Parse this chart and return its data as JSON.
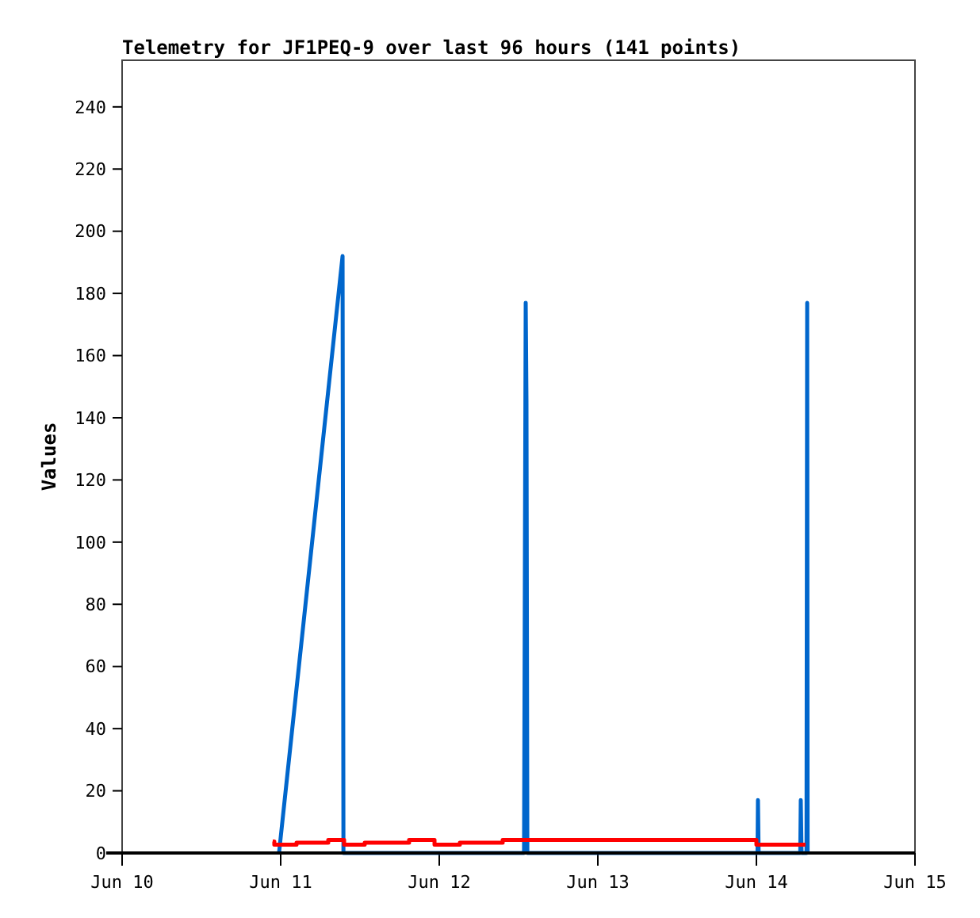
{
  "chart_data": {
    "type": "line",
    "title": "Telemetry for JF1PEQ-9 over last 96 hours (141 points)",
    "ylabel": "Values",
    "xlim": [
      "--06-10",
      "--06-15"
    ],
    "xticks": [
      {
        "value": "--06-10",
        "label": "Jun 10"
      },
      {
        "value": "--06-11",
        "label": "Jun 11"
      },
      {
        "value": "--06-12",
        "label": "Jun 12"
      },
      {
        "value": "--06-13",
        "label": "Jun 13"
      },
      {
        "value": "--06-14",
        "label": "Jun 14"
      },
      {
        "value": "--06-15",
        "label": "Jun 15"
      }
    ],
    "ylim": [
      0,
      255
    ],
    "yticks": [
      0,
      20,
      40,
      60,
      80,
      100,
      120,
      140,
      160,
      180,
      200,
      220,
      240
    ],
    "grid": false,
    "series": [
      {
        "color": "#0066cc",
        "x": [
          "--06-10T23:45",
          "--06-11T09:22",
          "--06-11T09:30",
          "--06-12T12:50",
          "--06-12T12:58",
          "--06-12T13:05",
          "--06-12T13:12",
          "--06-12T13:20",
          "--06-14T00:10",
          "--06-14T00:14",
          "--06-14T00:20",
          "--06-14T06:38",
          "--06-14T06:43",
          "--06-14T06:50",
          "--06-14T07:35",
          "--06-14T07:41",
          "--06-14T07:45"
        ],
        "values": [
          0,
          192,
          0,
          0,
          97,
          177,
          145,
          0,
          0,
          17,
          0,
          0,
          17,
          0,
          0,
          177,
          0
        ]
      },
      {
        "type": "step",
        "color": "#ff0000",
        "x": [
          "--06-10T22:48",
          "--06-10T23:02",
          "--06-11T02:24",
          "--06-11T07:12",
          "--06-11T09:36",
          "--06-11T12:43",
          "--06-11T19:26",
          "--06-11T23:17",
          "--06-12T03:07",
          "--06-12T09:36",
          "--06-14T00:00",
          "--06-14T07:26"
        ],
        "values": [
          3.7,
          2.7,
          3.3,
          4.2,
          2.7,
          3.3,
          4.2,
          2.7,
          3.3,
          4.2,
          2.7,
          2.7
        ]
      }
    ]
  }
}
